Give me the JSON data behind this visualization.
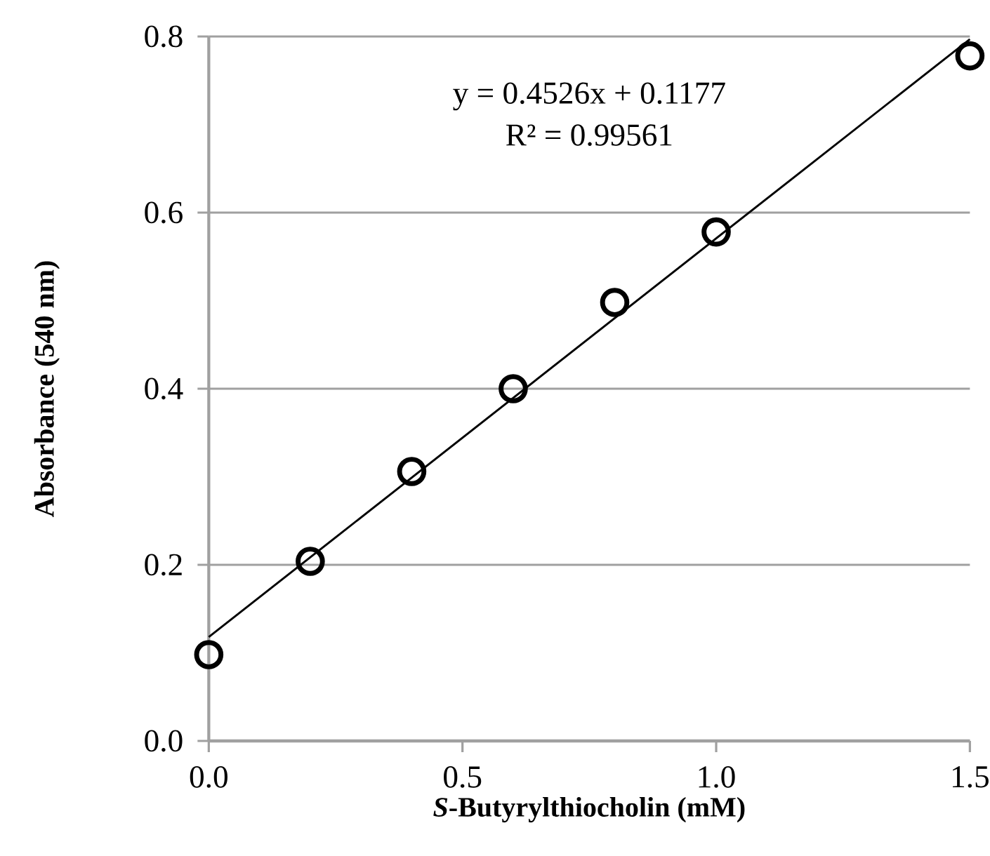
{
  "chart_data": {
    "type": "scatter",
    "xlabel": "*S*-Butyrylthiocholin (mM)",
    "ylabel": "Absorbance (540 nm)",
    "annotations": [
      "y = 0.4526x + 0.1177",
      "R² = 0.99561"
    ],
    "x": [
      0,
      0.2,
      0.4,
      0.6,
      0.8,
      1.0,
      1.5
    ],
    "series": [
      {
        "color": "#000000",
        "values": [
          0.098,
          0.204,
          0.306,
          0.4,
          0.498,
          0.578,
          0.778
        ]
      },
      {
        "type": "line",
        "color": "#000000",
        "x": [
          0,
          1.5
        ],
        "values": [
          0.118,
          0.797
        ],
        "marker": "none",
        "line_style": "solid"
      }
    ],
    "marker": "circle",
    "xlim": [
      0,
      1.5
    ],
    "xticks": [
      {
        "value": 0,
        "label": "0.0"
      },
      0.5,
      {
        "value": 1,
        "label": "1.0"
      },
      1.5
    ],
    "ylim": [
      0,
      0.8
    ],
    "yticks": [
      {
        "value": 0,
        "label": "0.0"
      },
      0.2,
      0.4,
      0.6,
      0.8
    ],
    "grid": "y"
  }
}
